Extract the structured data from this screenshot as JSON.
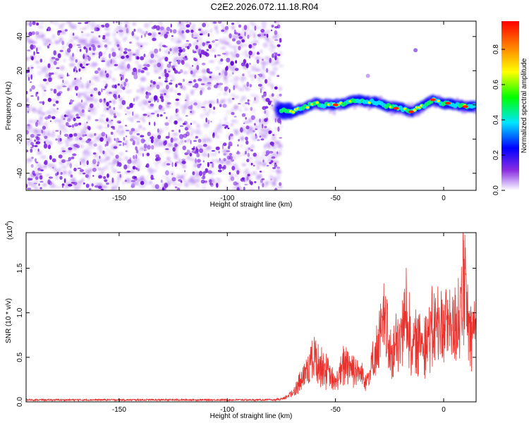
{
  "title": "C2E2.2026.072.11.18.R04",
  "chart_data": [
    {
      "type": "heatmap",
      "xlabel": "Height of straight line (km)",
      "ylabel": "Frequency (Hz)",
      "xlim": [
        -193,
        15
      ],
      "ylim": [
        -50,
        49
      ],
      "xticks": [
        -150,
        -100,
        -50,
        0
      ],
      "yticks": [
        -40,
        -20,
        0,
        20,
        40
      ],
      "noise_region_x": [
        -193,
        -75
      ],
      "signal_ridge": {
        "x": [
          -77,
          -70,
          -65,
          -60,
          -55,
          -50,
          -45,
          -40,
          -35,
          -30,
          -25,
          -20,
          -15,
          -10,
          -5,
          0,
          5,
          10,
          15
        ],
        "freq": [
          -3,
          -4,
          -2,
          1,
          0,
          0,
          1,
          3,
          2,
          1,
          -1,
          -2,
          -4,
          -1,
          3,
          1,
          0,
          -1,
          -1
        ]
      },
      "colorbar": {
        "label": "Normalized spectral amplitude",
        "ticks": [
          "0.0",
          "0.2",
          "0.4",
          "0.6",
          "0.8"
        ],
        "range": [
          0,
          0.96
        ]
      }
    },
    {
      "type": "line",
      "xlabel": "Height of straight line (km)",
      "ylabel": "SNR (10 * v/v)",
      "scale_label": "(x10",
      "scale_exponent": "4",
      "xlim": [
        -193,
        15
      ],
      "ylim": [
        0,
        1.9
      ],
      "xticks": [
        -150,
        -100,
        -50,
        0
      ],
      "yticks": [
        "0.0",
        "0.5",
        "1.0",
        "1.5"
      ],
      "series": [
        {
          "name": "SNR",
          "color": "#e8322d",
          "envelope_x": [
            -193,
            -80,
            -74,
            -70,
            -65,
            -60,
            -55,
            -50,
            -45,
            -40,
            -35,
            -30,
            -27,
            -25,
            -20,
            -17,
            -15,
            -10,
            -5,
            0,
            5,
            10,
            12,
            15
          ],
          "envelope_y": [
            0.02,
            0.02,
            0.05,
            0.15,
            0.4,
            0.75,
            0.55,
            0.3,
            0.7,
            0.5,
            0.4,
            0.95,
            1.4,
            0.8,
            1.0,
            1.55,
            0.9,
            1.05,
            1.2,
            1.3,
            1.25,
            1.9,
            1.0,
            1.3
          ]
        }
      ]
    }
  ]
}
